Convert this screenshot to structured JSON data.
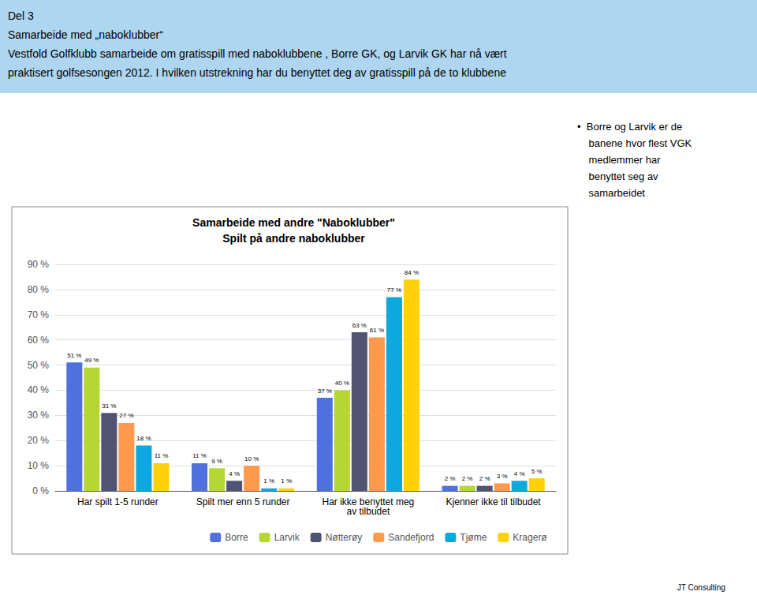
{
  "chart_data": {
    "type": "bar",
    "title": "Samarbeide med andre \"Naboklubber\"",
    "subtitle": "Spilt på andre naboklubber",
    "annotations": [
      "Del 3\nSamarbeide med „naboklubber“\nVestfold Golfklubb samarbeide om gratisspill med naboklubbene , Borre GK, og Larvik GK har nå vært\npraktisert golfsesongen 2012. I hvilken utstrekning har du benyttet deg av gratisspill på de to klubbene",
      "•  Borre og Larvik er de\n    banene hvor flest VGK\n    medlemmer har\n    benyttet seg av\n    samarbeidet",
      "JT Consulting"
    ],
    "categories": [
      "Har spilt 1-5 runder",
      "Spilt mer enn 5 runder",
      "Har ikke benyttet meg\nav tilbudet",
      "Kjenner ikke til tilbudet"
    ],
    "series": [
      {
        "name": "Borre",
        "values": [
          51,
          11,
          37,
          2
        ],
        "value_labels": [
          "51 %",
          "11 %",
          "37 %",
          "2 %"
        ]
      },
      {
        "name": "Larvik",
        "values": [
          49,
          9,
          40,
          2
        ],
        "value_labels": [
          "49 %",
          "9 %",
          "40 %",
          "2 %"
        ]
      },
      {
        "name": "Nøtterøy",
        "values": [
          31,
          4,
          63,
          2
        ],
        "value_labels": [
          "31 %",
          "4 %",
          "63 %",
          "2 %"
        ]
      },
      {
        "name": "Sandefjord",
        "values": [
          27,
          10,
          61,
          3
        ],
        "value_labels": [
          "27 %",
          "10 %",
          "61 %",
          "3 %"
        ]
      },
      {
        "name": "Tjøme",
        "values": [
          18,
          1,
          77,
          4
        ],
        "value_labels": [
          "18 %",
          "1 %",
          "77 %",
          "4 %"
        ]
      },
      {
        "name": "Kragerø",
        "values": [
          11,
          1,
          84,
          5
        ],
        "value_labels": [
          "11 %",
          "1 %",
          "84 %",
          "5 %"
        ]
      }
    ],
    "ylim": [
      0,
      90
    ],
    "yticks": [
      {
        "value": 0,
        "label": "0 %"
      },
      {
        "value": 10,
        "label": "10 %"
      },
      {
        "value": 20,
        "label": "20 %"
      },
      {
        "value": 30,
        "label": "30 %"
      },
      {
        "value": 40,
        "label": "40 %"
      },
      {
        "value": 50,
        "label": "50 %"
      },
      {
        "value": 60,
        "label": "60 %"
      },
      {
        "value": 70,
        "label": "70 %"
      },
      {
        "value": 80,
        "label": "80 %"
      },
      {
        "value": 90,
        "label": "90 %"
      }
    ],
    "grid": true,
    "legend": "bottom",
    "data_labels": true
  }
}
